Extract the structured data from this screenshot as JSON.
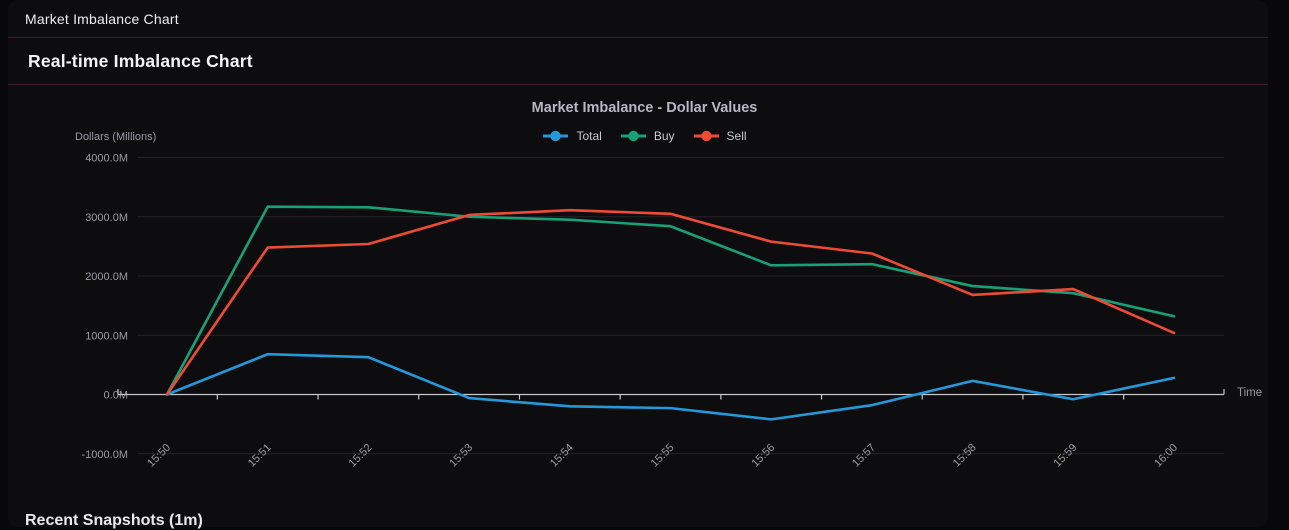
{
  "window": {
    "title": "Market Imbalance Chart"
  },
  "page": {
    "heading": "Real-time Imbalance Chart",
    "bottom_section_heading": "Recent Snapshots (1m)"
  },
  "colors": {
    "page_bg": "#08080a",
    "panel_bg": "#0d0d10",
    "separator_red": "#421a20",
    "grid_line": "#232328",
    "axis_line": "#c6c6ca",
    "accent_blue": "#2499d9",
    "accent_green": "#18a176",
    "accent_red": "#ee4b35"
  },
  "chart_data": {
    "type": "line",
    "title": "Market Imbalance - Dollar Values",
    "y_axis_label": "Dollars (Millions)",
    "x_axis_label": "Time",
    "legend_position": "top",
    "grid": true,
    "x": [
      "15:50",
      "15:51",
      "15:52",
      "15:53",
      "15:54",
      "15:55",
      "15:56",
      "15:57",
      "15:58",
      "15:59",
      "16:00"
    ],
    "series": [
      {
        "name": "Total",
        "color": "#2499d9",
        "values": [
          0,
          680,
          630,
          -60,
          -200,
          -230,
          -420,
          -180,
          230,
          -80,
          280
        ]
      },
      {
        "name": "Buy",
        "color": "#18a176",
        "values": [
          0,
          3170,
          3160,
          3000,
          2950,
          2840,
          2180,
          2200,
          1830,
          1710,
          1320
        ]
      },
      {
        "name": "Sell",
        "color": "#ee4b35",
        "values": [
          0,
          2480,
          2540,
          3030,
          3110,
          3050,
          2580,
          2380,
          1680,
          1780,
          1040
        ]
      }
    ],
    "y_ticks": [
      4000,
      3000,
      2000,
      1000,
      0,
      -1000
    ],
    "y_tick_labels": [
      "4000.0M",
      "3000.0M",
      "2000.0M",
      "1000.0M",
      "0.0M",
      "-1000.0M"
    ],
    "ylim": [
      -1000,
      4000
    ]
  }
}
